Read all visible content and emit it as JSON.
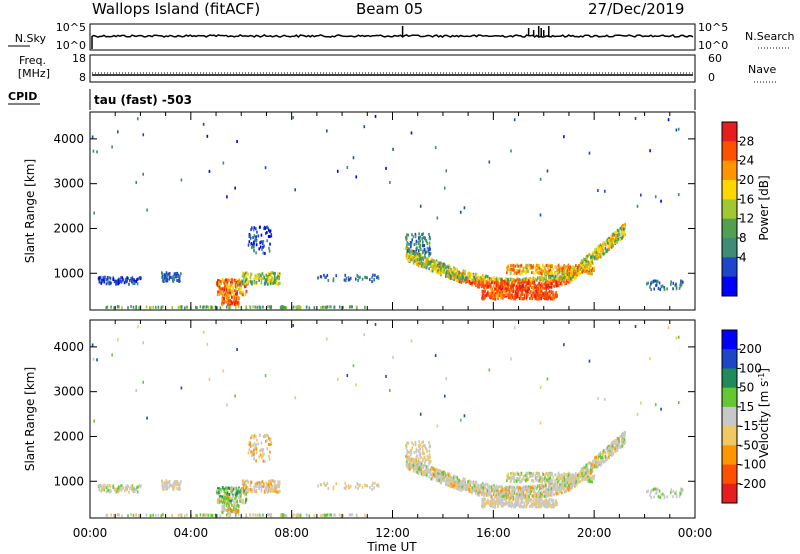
{
  "header": {
    "station": "Wallops Island (fitACF)",
    "beam": "Beam 05",
    "date": "27/Dec/2019"
  },
  "left_labels": {
    "nsky": "N.Sky",
    "freq_line1": "Freq.",
    "freq_line2": "[MHz]",
    "cpid": "CPID"
  },
  "right_labels": {
    "nsearch": "N.Search",
    "nave": "Nave"
  },
  "mode_text": "tau (fast) -503",
  "colors": {
    "power": [
      "#0000ff",
      "#1e46c8",
      "#3c8c78",
      "#50a050",
      "#a0c832",
      "#ffd700",
      "#ff9600",
      "#ff5000",
      "#e61e1e"
    ],
    "velocity": [
      "#e61e1e",
      "#ff5000",
      "#ff9600",
      "#f0c864",
      "#c8c8c8",
      "#64c832",
      "#1e8c5a",
      "#1e46c8",
      "#0000ff"
    ]
  },
  "chart_data": [
    {
      "type": "line",
      "title": "N.Sky / N.Search",
      "y_tick_labels": [
        "10^5",
        "10^0"
      ],
      "y_scale": "log",
      "x_range": [
        0,
        24
      ],
      "y_typical": 2,
      "spikes_hours": [
        12.4,
        17.4,
        17.6,
        17.8,
        17.9,
        18.0,
        18.2
      ]
    },
    {
      "type": "line",
      "title": "Freq. [MHz] / Nave",
      "left_ticks": [
        "18",
        "8"
      ],
      "right_ticks": [
        "60",
        "0"
      ],
      "freq_mhz": 10.5,
      "nave_typical": 20
    },
    {
      "type": "heatmap",
      "title": "Power",
      "ylabel": "Slant Range [km]",
      "y_ticks": [
        1000,
        2000,
        3000,
        4000
      ],
      "ylim": [
        180,
        4600
      ],
      "x_ticks": [
        "00:00",
        "04:00",
        "08:00",
        "12:00",
        "16:00",
        "20:00",
        "00:00"
      ],
      "x_range_hours": [
        0,
        24
      ],
      "colorbar_label": "Power [dB]",
      "colorbar_ticks": [
        "4",
        "8",
        "12",
        "16",
        "20",
        "24",
        "28"
      ],
      "colorbar_range": [
        0,
        32
      ]
    },
    {
      "type": "heatmap",
      "title": "Velocity",
      "ylabel": "Slant Range [km]",
      "xlabel": "Time UT",
      "y_ticks": [
        1000,
        2000,
        3000,
        4000
      ],
      "ylim": [
        180,
        4600
      ],
      "x_ticks": [
        "00:00",
        "04:00",
        "08:00",
        "12:00",
        "16:00",
        "20:00",
        "00:00"
      ],
      "x_range_hours": [
        0,
        24
      ],
      "colorbar_label": "Velocity [m s-1]",
      "colorbar_ticks": [
        "200",
        "100",
        "50",
        "15",
        "-15",
        "-50",
        "-100",
        "-200"
      ]
    }
  ]
}
